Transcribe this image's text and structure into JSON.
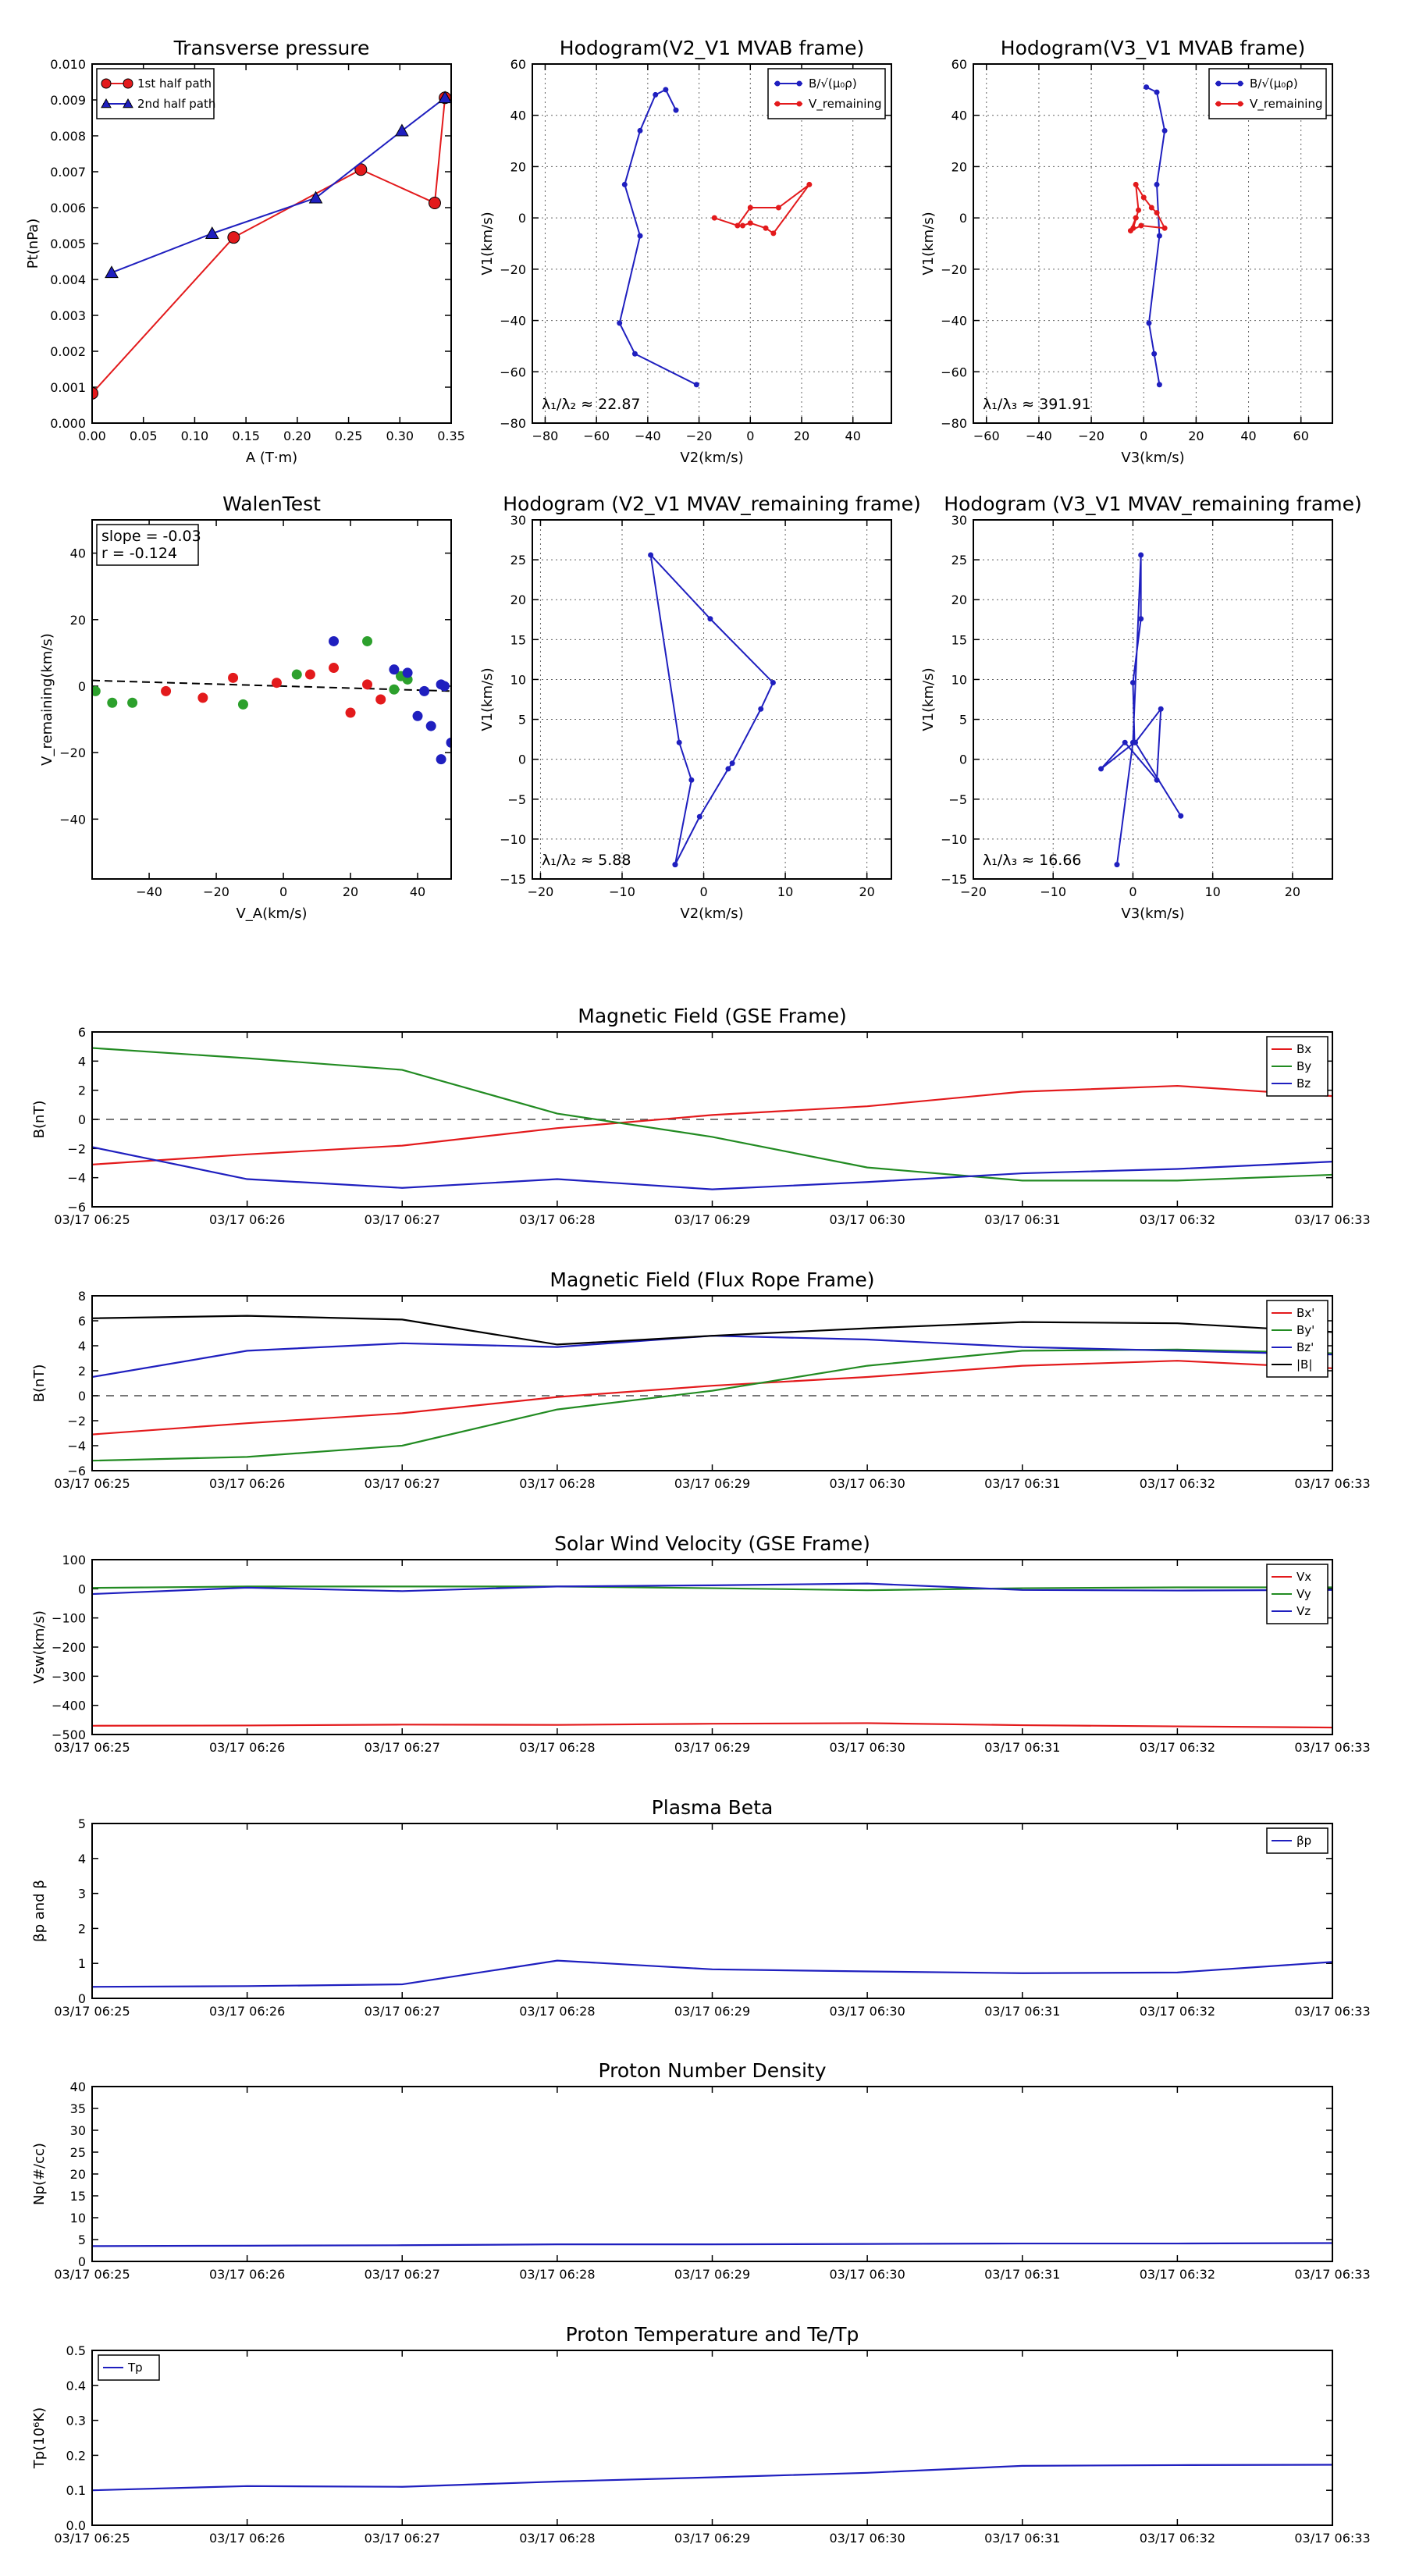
{
  "chart_data": [
    {
      "id": "transverse_pressure",
      "type": "line",
      "title": "Transverse pressure",
      "xlabel": "A (T·m)",
      "ylabel": "Pt(nPa)",
      "xlim": [
        0,
        0.35
      ],
      "ylim": [
        0,
        0.01
      ],
      "xticks": [
        "0.00",
        "0.05",
        "0.10",
        "0.15",
        "0.20",
        "0.25",
        "0.30",
        "0.35"
      ],
      "yticks": [
        "0.000",
        "0.001",
        "0.002",
        "0.003",
        "0.004",
        "0.005",
        "0.006",
        "0.007",
        "0.008",
        "0.009",
        "0.010"
      ],
      "grid": false,
      "legend_position": "top-left",
      "series": [
        {
          "name": "1st half path",
          "color": "#e31a1c",
          "marker": "circle",
          "x": [
            0.0,
            0.138,
            0.262,
            0.334,
            0.344
          ],
          "y": [
            0.00083,
            0.00517,
            0.00706,
            0.00613,
            0.00906
          ]
        },
        {
          "name": "2nd half path",
          "color": "#1f1fbf",
          "marker": "triangle",
          "x": [
            0.344,
            0.302,
            0.218,
            0.117,
            0.019
          ],
          "y": [
            0.00906,
            0.00814,
            0.00627,
            0.00528,
            0.00419
          ]
        }
      ]
    },
    {
      "id": "hodogram_v2_mvab",
      "type": "line",
      "title": "Hodogram(V2_V1 MVAB frame)",
      "xlabel": "V2(km/s)",
      "ylabel": "V1(km/s)",
      "xlim": [
        -85,
        55
      ],
      "ylim": [
        -80,
        60
      ],
      "xticks": [
        "−80",
        "−60",
        "−40",
        "−20",
        "0",
        "20",
        "40"
      ],
      "xtickvals": [
        -80,
        -60,
        -40,
        -20,
        0,
        20,
        40
      ],
      "yticks": [
        "−80",
        "−60",
        "−40",
        "−20",
        "0",
        "20",
        "40",
        "60"
      ],
      "ytickvals": [
        -80,
        -60,
        -40,
        -20,
        0,
        20,
        40,
        60
      ],
      "grid": true,
      "legend_position": "top-right",
      "annotation": "λ₁/λ₂ ≈ 22.87",
      "series": [
        {
          "name": "B/√(μ₀ρ)",
          "color": "#1f1fbf",
          "x": [
            -29,
            -33,
            -37,
            -43,
            -49,
            -43,
            -51,
            -45,
            -21
          ],
          "y": [
            42,
            50,
            48,
            34,
            13,
            -7,
            -41,
            -53,
            -65
          ]
        },
        {
          "name": "V_remaining",
          "color": "#e31a1c",
          "x": [
            -14,
            -5,
            0,
            11,
            23,
            9,
            6,
            0,
            -3
          ],
          "y": [
            0,
            -3,
            4,
            4,
            13,
            -6,
            -4,
            -2,
            -3
          ]
        }
      ]
    },
    {
      "id": "hodogram_v3_mvab",
      "type": "line",
      "title": "Hodogram(V3_V1 MVAB frame)",
      "xlabel": "V3(km/s)",
      "ylabel": "V1(km/s)",
      "xlim": [
        -65,
        72
      ],
      "ylim": [
        -80,
        60
      ],
      "xticks": [
        "−60",
        "−40",
        "−20",
        "0",
        "20",
        "40",
        "60"
      ],
      "xtickvals": [
        -60,
        -40,
        -20,
        0,
        20,
        40,
        60
      ],
      "yticks": [
        "−80",
        "−60",
        "−40",
        "−20",
        "0",
        "20",
        "40",
        "60"
      ],
      "ytickvals": [
        -80,
        -60,
        -40,
        -20,
        0,
        20,
        40,
        60
      ],
      "grid": true,
      "legend_position": "top-right",
      "annotation": "λ₁/λ₃ ≈ 391.91",
      "series": [
        {
          "name": "B/√(μ₀ρ)",
          "color": "#1f1fbf",
          "x": [
            1,
            5,
            8,
            5,
            6,
            2,
            4,
            6
          ],
          "y": [
            51,
            49,
            34,
            13,
            -7,
            -41,
            -53,
            -65
          ]
        },
        {
          "name": "V_remaining",
          "color": "#e31a1c",
          "x": [
            -4,
            -2,
            -3,
            0,
            3,
            5,
            8,
            -1,
            -5,
            -3
          ],
          "y": [
            -4,
            3,
            13,
            8,
            4,
            2,
            -4,
            -3,
            -5,
            0
          ]
        }
      ]
    },
    {
      "id": "walen_test",
      "type": "scatter",
      "title": "WalenTest",
      "xlabel": "V_A(km/s)",
      "ylabel": "V_remaining(km/s)",
      "xlim": [
        -57,
        50
      ],
      "ylim": [
        -58,
        50
      ],
      "xticks": [
        "−40",
        "−20",
        "0",
        "20",
        "40"
      ],
      "xtickvals": [
        -40,
        -20,
        0,
        20,
        40
      ],
      "yticks": [
        "−40",
        "−20",
        "0",
        "20",
        "40"
      ],
      "ytickvals": [
        -40,
        -20,
        0,
        20,
        40
      ],
      "grid": false,
      "annotation_lines": [
        "slope = -0.03",
        "r = -0.124"
      ],
      "fit_line": {
        "slope": -0.03,
        "intercept": 0.0
      },
      "series": [
        {
          "color": "#e31a1c",
          "x": [
            -35,
            -24,
            -15,
            -2,
            8,
            15,
            20,
            25,
            29
          ],
          "y": [
            -1.5,
            -3.5,
            2.5,
            1,
            3.5,
            5.5,
            -8,
            0.5,
            -4
          ]
        },
        {
          "color": "#2ca02c",
          "x": [
            -56,
            -51,
            -45,
            -12,
            4,
            25,
            33,
            37,
            35
          ],
          "y": [
            -1.5,
            -5,
            -5,
            -5.5,
            3.5,
            13.5,
            -1,
            2,
            3
          ]
        },
        {
          "color": "#1f1fbf",
          "x": [
            15,
            33,
            37,
            40,
            42,
            44,
            47,
            50,
            47,
            48
          ],
          "y": [
            13.5,
            5,
            4,
            -9,
            -1.5,
            -12,
            0.5,
            -17,
            -22,
            0
          ]
        }
      ]
    },
    {
      "id": "hodogram_v2_mvav",
      "type": "line",
      "title": "Hodogram (V2_V1 MVAV_remaining frame)",
      "xlabel": "V2(km/s)",
      "ylabel": "V1(km/s)",
      "xlim": [
        -21,
        23
      ],
      "ylim": [
        -15,
        30
      ],
      "xticks": [
        "−20",
        "−10",
        "0",
        "10",
        "20"
      ],
      "xtickvals": [
        -20,
        -10,
        0,
        10,
        20
      ],
      "yticks": [
        "−15",
        "−10",
        "−5",
        "0",
        "5",
        "10",
        "15",
        "20",
        "25",
        "30"
      ],
      "ytickvals": [
        -15,
        -10,
        -5,
        0,
        5,
        10,
        15,
        20,
        25,
        30
      ],
      "grid": true,
      "annotation": "λ₁/λ₂ ≈ 5.88",
      "series": [
        {
          "color": "#1f1fbf",
          "x": [
            -3.5,
            -1.5,
            -3,
            -6.5,
            0.8,
            8.5,
            7,
            3.5,
            3,
            -0.5,
            -3.5
          ],
          "y": [
            -13.2,
            -2.6,
            2.1,
            25.6,
            17.6,
            9.6,
            6.3,
            -0.5,
            -1.2,
            -7.2,
            -13.2
          ]
        }
      ]
    },
    {
      "id": "hodogram_v3_mvav",
      "type": "line",
      "title": "Hodogram (V3_V1 MVAV_remaining frame)",
      "xlabel": "V3(km/s)",
      "ylabel": "V1(km/s)",
      "xlim": [
        -20,
        25
      ],
      "ylim": [
        -15,
        30
      ],
      "xticks": [
        "−20",
        "−10",
        "0",
        "10",
        "20"
      ],
      "xtickvals": [
        -20,
        -10,
        0,
        10,
        20
      ],
      "yticks": [
        "−15",
        "−10",
        "−5",
        "0",
        "5",
        "10",
        "15",
        "20",
        "25",
        "30"
      ],
      "ytickvals": [
        -15,
        -10,
        -5,
        0,
        5,
        10,
        15,
        20,
        25,
        30
      ],
      "grid": true,
      "annotation": "λ₁/λ₃ ≈ 16.66",
      "series": [
        {
          "color": "#1f1fbf",
          "x": [
            -2,
            0,
            1,
            1,
            0,
            0.2,
            -4,
            -1,
            3,
            3.5,
            0.3,
            6
          ],
          "y": [
            -13.2,
            2.1,
            25.6,
            17.6,
            9.6,
            2.1,
            -1.2,
            2.1,
            -2.6,
            6.3,
            2.1,
            -7.1
          ]
        }
      ]
    },
    {
      "id": "b_gse",
      "type": "line",
      "title": "Magnetic Field (GSE Frame)",
      "ylabel": "B(nT)",
      "categories": [
        "03/17 06:25",
        "03/17 06:26",
        "03/17 06:27",
        "03/17 06:28",
        "03/17 06:29",
        "03/17 06:30",
        "03/17 06:31",
        "03/17 06:32",
        "03/17 06:33"
      ],
      "ylim": [
        -6,
        6
      ],
      "yticks": [
        "−6",
        "−4",
        "−2",
        "0",
        "2",
        "4",
        "6"
      ],
      "ytickvals": [
        -6,
        -4,
        -2,
        0,
        2,
        4,
        6
      ],
      "zero_line": true,
      "legend_position": "top-right",
      "series": [
        {
          "name": "Bx",
          "color": "#e31a1c",
          "values": [
            -3.1,
            -2.4,
            -1.8,
            -0.6,
            0.3,
            0.9,
            1.9,
            2.3,
            1.6
          ]
        },
        {
          "name": "By",
          "color": "#228b22",
          "values": [
            4.9,
            4.2,
            3.4,
            0.4,
            -1.2,
            -3.3,
            -4.2,
            -4.2,
            -3.8
          ]
        },
        {
          "name": "Bz",
          "color": "#1f1fbf",
          "values": [
            -1.9,
            -4.1,
            -4.7,
            -4.1,
            -4.8,
            -4.3,
            -3.7,
            -3.4,
            -2.9
          ]
        }
      ]
    },
    {
      "id": "b_flux_rope",
      "type": "line",
      "title": "Magnetic Field (Flux Rope Frame)",
      "ylabel": "B(nT)",
      "categories": [
        "03/17 06:25",
        "03/17 06:26",
        "03/17 06:27",
        "03/17 06:28",
        "03/17 06:29",
        "03/17 06:30",
        "03/17 06:31",
        "03/17 06:32",
        "03/17 06:33"
      ],
      "ylim": [
        -6,
        8
      ],
      "yticks": [
        "−6",
        "−4",
        "−2",
        "0",
        "2",
        "4",
        "6",
        "8"
      ],
      "ytickvals": [
        -6,
        -4,
        -2,
        0,
        2,
        4,
        6,
        8
      ],
      "zero_line": true,
      "legend_position": "top-right",
      "series": [
        {
          "name": "Bx'",
          "color": "#e31a1c",
          "values": [
            -3.1,
            -2.2,
            -1.4,
            -0.1,
            0.8,
            1.5,
            2.4,
            2.8,
            2.2
          ]
        },
        {
          "name": "By'",
          "color": "#228b22",
          "values": [
            -5.2,
            -4.9,
            -4.0,
            -1.1,
            0.4,
            2.4,
            3.6,
            3.7,
            3.4
          ]
        },
        {
          "name": "Bz'",
          "color": "#1f1fbf",
          "values": [
            1.5,
            3.6,
            4.2,
            3.9,
            4.8,
            4.5,
            3.9,
            3.6,
            3.3
          ]
        },
        {
          "name": "|B|",
          "color": "#000000",
          "values": [
            6.2,
            6.4,
            6.1,
            4.1,
            4.8,
            5.4,
            5.9,
            5.8,
            5.1
          ]
        }
      ]
    },
    {
      "id": "sw_velocity",
      "type": "line",
      "title": "Solar Wind Velocity (GSE Frame)",
      "ylabel": "Vsw(km/s)",
      "categories": [
        "03/17 06:25",
        "03/17 06:26",
        "03/17 06:27",
        "03/17 06:28",
        "03/17 06:29",
        "03/17 06:30",
        "03/17 06:31",
        "03/17 06:32",
        "03/17 06:33"
      ],
      "ylim": [
        -500,
        100
      ],
      "yticks": [
        "−500",
        "−400",
        "−300",
        "−200",
        "−100",
        "0",
        "100"
      ],
      "ytickvals": [
        -500,
        -400,
        -300,
        -200,
        -100,
        0,
        100
      ],
      "legend_position": "top-right",
      "series": [
        {
          "name": "Vx",
          "color": "#e31a1c",
          "values": [
            -470,
            -469,
            -466,
            -467,
            -463,
            -461,
            -468,
            -472,
            -476
          ]
        },
        {
          "name": "Vy",
          "color": "#228b22",
          "values": [
            3,
            8,
            8,
            8,
            2,
            -5,
            2,
            5,
            5
          ]
        },
        {
          "name": "Vz",
          "color": "#1f1fbf",
          "values": [
            -18,
            4,
            -8,
            8,
            12,
            18,
            -4,
            -6,
            -4
          ]
        }
      ]
    },
    {
      "id": "plasma_beta",
      "type": "line",
      "title": "Plasma Beta",
      "ylabel": "βp and β",
      "categories": [
        "03/17 06:25",
        "03/17 06:26",
        "03/17 06:27",
        "03/17 06:28",
        "03/17 06:29",
        "03/17 06:30",
        "03/17 06:31",
        "03/17 06:32",
        "03/17 06:33"
      ],
      "ylim": [
        0,
        5
      ],
      "yticks": [
        "0",
        "1",
        "2",
        "3",
        "4",
        "5"
      ],
      "ytickvals": [
        0,
        1,
        2,
        3,
        4,
        5
      ],
      "legend_position": "top-right",
      "series": [
        {
          "name": "βp",
          "color": "#1f1fbf",
          "values": [
            0.33,
            0.35,
            0.4,
            1.08,
            0.83,
            0.77,
            0.72,
            0.74,
            1.04
          ]
        }
      ]
    },
    {
      "id": "proton_density",
      "type": "line",
      "title": "Proton Number Density",
      "ylabel": "Np(#/cc)",
      "categories": [
        "03/17 06:25",
        "03/17 06:26",
        "03/17 06:27",
        "03/17 06:28",
        "03/17 06:29",
        "03/17 06:30",
        "03/17 06:31",
        "03/17 06:32",
        "03/17 06:33"
      ],
      "ylim": [
        0,
        40
      ],
      "yticks": [
        "0",
        "5",
        "10",
        "15",
        "20",
        "25",
        "30",
        "35",
        "40"
      ],
      "ytickvals": [
        0,
        5,
        10,
        15,
        20,
        25,
        30,
        35,
        40
      ],
      "series": [
        {
          "color": "#1f1fbf",
          "values": [
            3.5,
            3.6,
            3.7,
            3.9,
            3.9,
            4.0,
            4.1,
            4.1,
            4.2
          ]
        }
      ]
    },
    {
      "id": "proton_temperature",
      "type": "line",
      "title": "Proton Temperature and Te/Tp",
      "ylabel": "Tp(10⁶K)",
      "categories": [
        "03/17 06:25",
        "03/17 06:26",
        "03/17 06:27",
        "03/17 06:28",
        "03/17 06:29",
        "03/17 06:30",
        "03/17 06:31",
        "03/17 06:32",
        "03/17 06:33"
      ],
      "ylim": [
        0,
        0.5
      ],
      "yticks": [
        "0.0",
        "0.1",
        "0.2",
        "0.3",
        "0.4",
        "0.5"
      ],
      "ytickvals": [
        0,
        0.1,
        0.2,
        0.3,
        0.4,
        0.5
      ],
      "legend_position": "top-left",
      "series": [
        {
          "name": "Tp",
          "color": "#1f1fbf",
          "values": [
            0.1,
            0.112,
            0.11,
            0.125,
            0.137,
            0.15,
            0.17,
            0.172,
            0.173
          ]
        }
      ]
    }
  ]
}
